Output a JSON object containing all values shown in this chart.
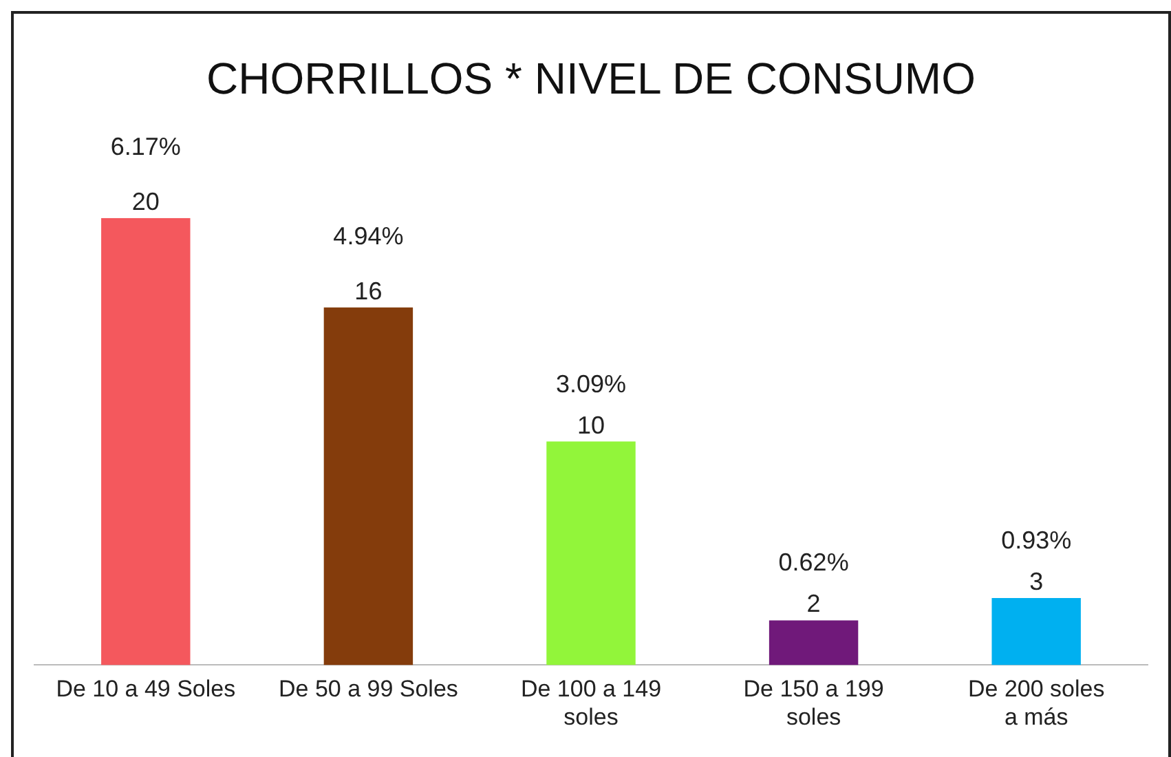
{
  "chart_data": {
    "type": "bar",
    "title": "CHORRILLOS * NIVEL DE CONSUMO",
    "categories": [
      "De 10 a 49 Soles",
      "De 50 a 99 Soles",
      "De 100 a 149 soles",
      "De 150 a 199 soles",
      "De 200 soles a más"
    ],
    "values": [
      20,
      16,
      10,
      2,
      3
    ],
    "colors": [
      "#f4585d",
      "#843c0c",
      "#92f53a",
      "#70197a",
      "#00b0f0"
    ],
    "data_labels": true,
    "grid": false,
    "legend": false,
    "annotations": [
      {
        "text": "6.17%",
        "x": "De 10 a 49 Soles",
        "y": 20
      },
      {
        "text": "4.94%",
        "x": "De 50 a 99 Soles",
        "y": 16
      },
      {
        "text": "3.09%",
        "x": "De 100 a 149 soles",
        "y": 10
      },
      {
        "text": "0.62%",
        "x": "De 150 a 199 soles",
        "y": 2
      },
      {
        "text": "0.93%",
        "x": "De 200 soles a más",
        "y": 3
      }
    ]
  }
}
